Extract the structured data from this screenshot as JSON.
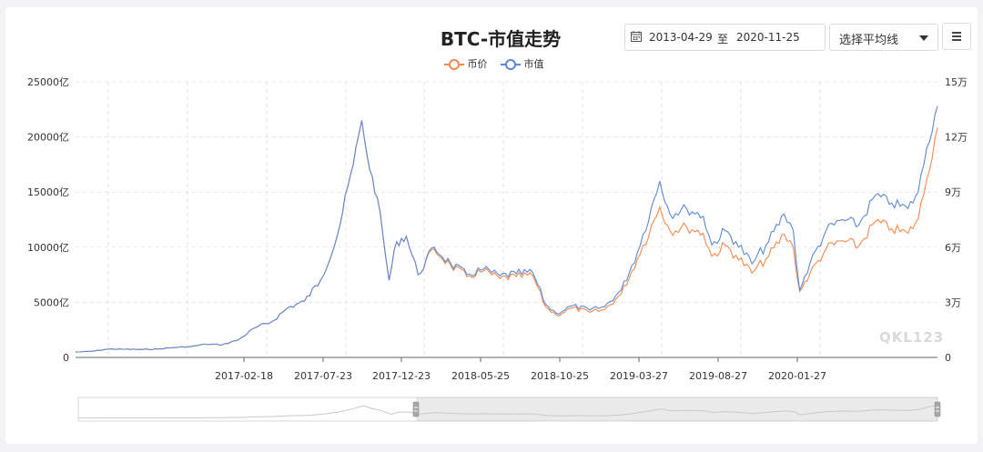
{
  "header": {
    "title": "BTC-市值走势",
    "date_start": "2013-04-29",
    "date_to": "至",
    "date_end": "2020-11-25",
    "ma_select": "选择平均线",
    "watermark": "QKL123"
  },
  "colors": {
    "price": "#f5894d",
    "market_cap": "#5c88d6"
  },
  "icons": [
    "calendar-icon",
    "chevron-down-icon",
    "hamburger-menu-icon"
  ],
  "chart_data": {
    "type": "line",
    "title": "BTC-市值走势",
    "legend": [
      "币价",
      "市值"
    ],
    "legend_position": "top-center",
    "grid": true,
    "y_left": {
      "label": "",
      "ticks": [
        "0",
        "5000亿",
        "10000亿",
        "15000亿",
        "20000亿",
        "25000亿"
      ],
      "range": [
        0,
        25000
      ],
      "unit": "亿"
    },
    "y_right": {
      "label": "",
      "ticks": [
        "0",
        "3万",
        "6万",
        "9万",
        "12万",
        "15万"
      ],
      "range": [
        0,
        150000
      ]
    },
    "x_ticks": [
      "2017-02-18",
      "2017-07-23",
      "2017-12-23",
      "2018-05-25",
      "2018-10-25",
      "2019-03-27",
      "2019-08-27",
      "2020-01-27"
    ],
    "x_range": [
      "2016-07-01",
      "2020-11-25"
    ],
    "series": [
      {
        "name": "市值",
        "axis": "left",
        "points": [
          [
            "2016-07-01",
            480
          ],
          [
            "2016-08-01",
            560
          ],
          [
            "2016-09-01",
            760
          ],
          [
            "2016-10-01",
            740
          ],
          [
            "2016-11-01",
            720
          ],
          [
            "2016-12-01",
            760
          ],
          [
            "2017-01-01",
            900
          ],
          [
            "2017-02-01",
            980
          ],
          [
            "2017-03-01",
            1200
          ],
          [
            "2017-04-01",
            1150
          ],
          [
            "2017-05-01",
            1600
          ],
          [
            "2017-06-01",
            2700
          ],
          [
            "2017-07-01",
            3200
          ],
          [
            "2017-08-01",
            4500
          ],
          [
            "2017-09-01",
            5100
          ],
          [
            "2017-10-01",
            7000
          ],
          [
            "2017-11-01",
            11000
          ],
          [
            "2017-12-01",
            17500
          ],
          [
            "2017-12-17",
            21500
          ],
          [
            "2018-01-01",
            17000
          ],
          [
            "2018-01-15",
            14500
          ],
          [
            "2018-02-06",
            7000
          ],
          [
            "2018-02-20",
            10500
          ],
          [
            "2018-03-10",
            11000
          ],
          [
            "2018-04-01",
            7500
          ],
          [
            "2018-05-01",
            10000
          ],
          [
            "2018-06-01",
            8500
          ],
          [
            "2018-07-01",
            7500
          ],
          [
            "2018-08-01",
            8000
          ],
          [
            "2018-09-01",
            7400
          ],
          [
            "2018-10-01",
            7600
          ],
          [
            "2018-11-01",
            7700
          ],
          [
            "2018-11-25",
            4800
          ],
          [
            "2018-12-15",
            4000
          ],
          [
            "2019-01-15",
            4700
          ],
          [
            "2019-02-15",
            4300
          ],
          [
            "2019-03-15",
            4600
          ],
          [
            "2019-04-15",
            6100
          ],
          [
            "2019-05-15",
            9500
          ],
          [
            "2019-06-26",
            16000
          ],
          [
            "2019-07-15",
            13000
          ],
          [
            "2019-08-15",
            13500
          ],
          [
            "2019-09-15",
            12800
          ],
          [
            "2019-10-01",
            10200
          ],
          [
            "2019-10-26",
            11500
          ],
          [
            "2019-11-15",
            10500
          ],
          [
            "2019-12-15",
            8500
          ],
          [
            "2020-01-15",
            10500
          ],
          [
            "2020-02-13",
            13000
          ],
          [
            "2020-03-01",
            11500
          ],
          [
            "2020-03-13",
            6100
          ],
          [
            "2020-04-01",
            8500
          ],
          [
            "2020-05-01",
            11500
          ],
          [
            "2020-06-01",
            12500
          ],
          [
            "2020-07-01",
            12000
          ],
          [
            "2020-08-01",
            14700
          ],
          [
            "2020-09-01",
            14000
          ],
          [
            "2020-10-01",
            13500
          ],
          [
            "2020-10-20",
            15000
          ],
          [
            "2020-11-05",
            19000
          ],
          [
            "2020-11-25",
            22800
          ]
        ]
      },
      {
        "name": "币价",
        "axis": "right",
        "points": [
          [
            "2016-07-01",
            2880
          ],
          [
            "2016-08-01",
            3360
          ],
          [
            "2016-09-01",
            4560
          ],
          [
            "2016-10-01",
            4440
          ],
          [
            "2016-11-01",
            4320
          ],
          [
            "2016-12-01",
            4560
          ],
          [
            "2017-01-01",
            5400
          ],
          [
            "2017-02-01",
            5880
          ],
          [
            "2017-03-01",
            7200
          ],
          [
            "2017-04-01",
            6900
          ],
          [
            "2017-05-01",
            9600
          ],
          [
            "2017-06-01",
            16200
          ],
          [
            "2017-07-01",
            19200
          ],
          [
            "2017-08-01",
            27000
          ],
          [
            "2017-09-01",
            30600
          ],
          [
            "2017-10-01",
            42000
          ],
          [
            "2017-11-01",
            66000
          ],
          [
            "2017-12-01",
            105000
          ],
          [
            "2017-12-17",
            129000
          ],
          [
            "2018-01-01",
            102000
          ],
          [
            "2018-01-15",
            87000
          ],
          [
            "2018-02-06",
            42000
          ],
          [
            "2018-02-20",
            63000
          ],
          [
            "2018-03-10",
            66000
          ],
          [
            "2018-04-01",
            45000
          ],
          [
            "2018-05-01",
            59000
          ],
          [
            "2018-06-01",
            50000
          ],
          [
            "2018-07-01",
            44000
          ],
          [
            "2018-08-01",
            47000
          ],
          [
            "2018-09-01",
            43000
          ],
          [
            "2018-10-01",
            44000
          ],
          [
            "2018-11-01",
            44500
          ],
          [
            "2018-11-25",
            27500
          ],
          [
            "2018-12-15",
            23000
          ],
          [
            "2019-01-15",
            27000
          ],
          [
            "2019-02-15",
            24500
          ],
          [
            "2019-03-15",
            26000
          ],
          [
            "2019-04-15",
            34500
          ],
          [
            "2019-05-15",
            53500
          ],
          [
            "2019-06-26",
            82000
          ],
          [
            "2019-07-15",
            69000
          ],
          [
            "2019-08-15",
            71000
          ],
          [
            "2019-09-15",
            67500
          ],
          [
            "2019-10-01",
            55000
          ],
          [
            "2019-10-26",
            61000
          ],
          [
            "2019-11-15",
            55500
          ],
          [
            "2019-12-15",
            46000
          ],
          [
            "2020-01-15",
            55000
          ],
          [
            "2020-02-13",
            67000
          ],
          [
            "2020-03-01",
            60000
          ],
          [
            "2020-03-13",
            36000
          ],
          [
            "2020-04-01",
            45500
          ],
          [
            "2020-05-01",
            59000
          ],
          [
            "2020-06-01",
            63500
          ],
          [
            "2020-07-01",
            60500
          ],
          [
            "2020-08-01",
            74000
          ],
          [
            "2020-09-01",
            70000
          ],
          [
            "2020-10-01",
            67500
          ],
          [
            "2020-10-20",
            75500
          ],
          [
            "2020-11-05",
            97000
          ],
          [
            "2020-11-25",
            125000
          ]
        ]
      }
    ]
  }
}
